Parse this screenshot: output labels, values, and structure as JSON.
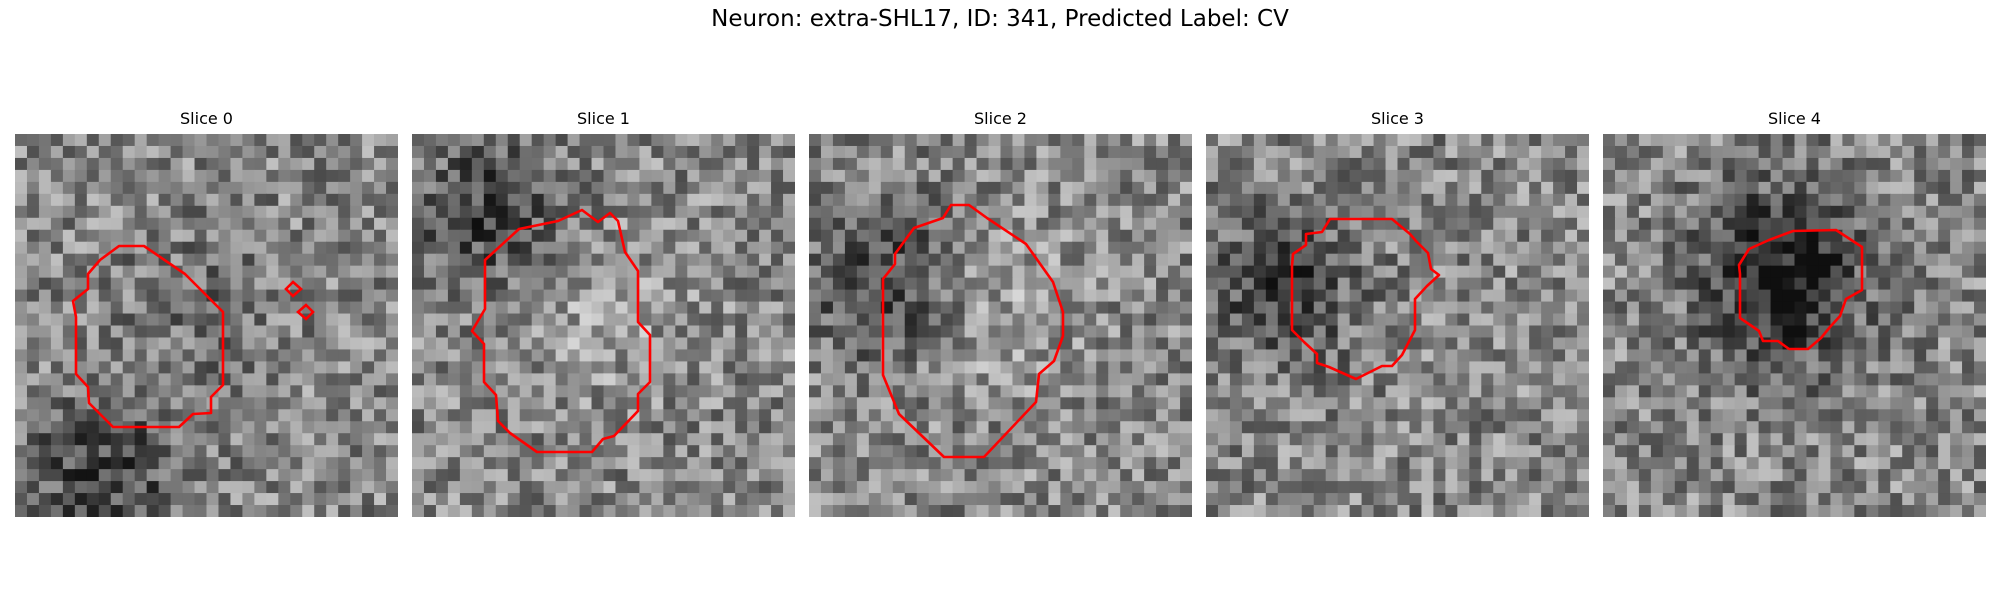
{
  "figure": {
    "title": "Neuron: extra-SHL17, ID: 341, Predicted Label: CV"
  },
  "slices": [
    {
      "title": "Slice 0",
      "seed": 11,
      "dark_region": "bottom-left",
      "blob": "dark-core"
    },
    {
      "title": "Slice 1",
      "seed": 23,
      "dark_region": "top-left",
      "blob": "light"
    },
    {
      "title": "Slice 2",
      "seed": 37,
      "dark_region": "left",
      "blob": "light"
    },
    {
      "title": "Slice 3",
      "seed": 41,
      "dark_region": "left",
      "blob": "mixed"
    },
    {
      "title": "Slice 4",
      "seed": 59,
      "dark_region": "center",
      "blob": "dark"
    }
  ],
  "colors": {
    "contour": "#ff0000",
    "colormap": "gray"
  }
}
